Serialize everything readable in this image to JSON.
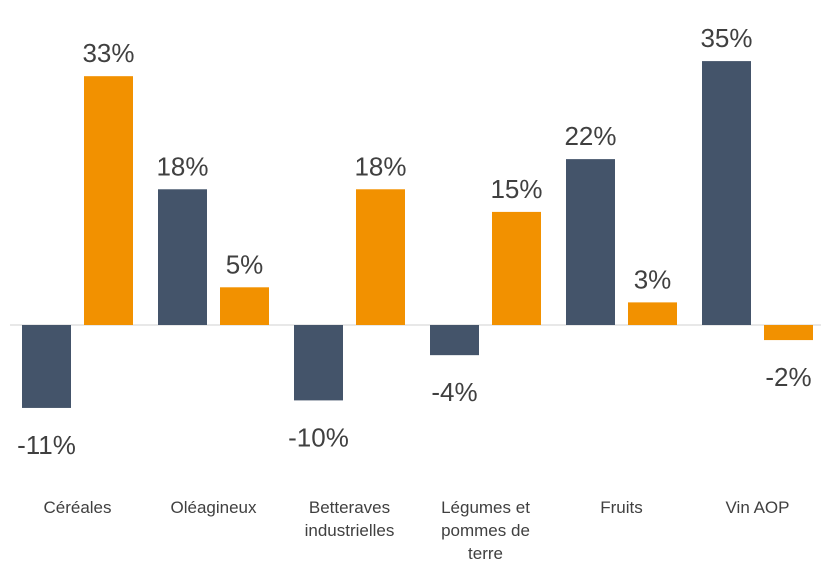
{
  "chart_data": {
    "type": "bar",
    "categories": [
      "Céréales",
      "Oléagineux",
      "Betteraves industrielles",
      "Légumes et pommes de terre",
      "Fruits",
      "Vin AOP"
    ],
    "series": [
      {
        "color": "#44546a",
        "values": [
          -11,
          18,
          -10,
          -4,
          22,
          35
        ],
        "value_labels": [
          "-11%",
          "18%",
          "-10%",
          "-4%",
          "22%",
          "35%"
        ]
      },
      {
        "color": "#f29100",
        "values": [
          33,
          5,
          18,
          15,
          3,
          -2
        ],
        "value_labels": [
          "33%",
          "5%",
          "18%",
          "15%",
          "3%",
          "-2%"
        ]
      }
    ]
  }
}
